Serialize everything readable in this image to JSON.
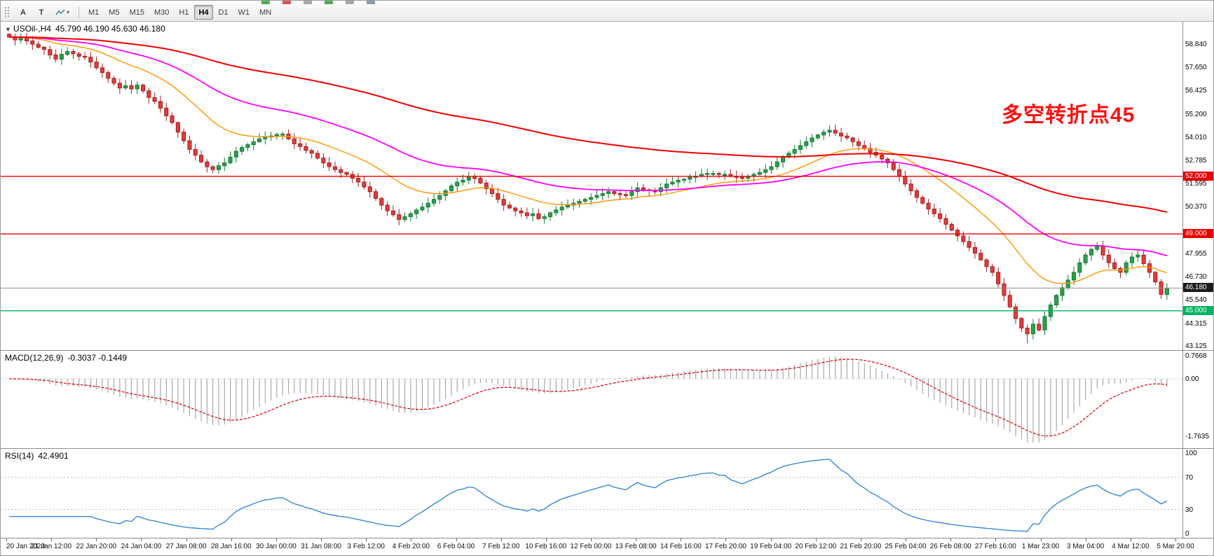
{
  "toolbar": {
    "drag_handle_icon": "drag-handle-icon",
    "tools": [
      {
        "name": "text-tool",
        "label": "A"
      },
      {
        "name": "text-label-tool",
        "label": "T"
      },
      {
        "name": "drawing-objects-tool",
        "icon": "trendline-tool-icon",
        "caret": "▾"
      }
    ],
    "timeframes": [
      {
        "label": "M1"
      },
      {
        "label": "M5"
      },
      {
        "label": "M15"
      },
      {
        "label": "M30"
      },
      {
        "label": "H1"
      },
      {
        "label": "H4",
        "active": true
      },
      {
        "label": "D1"
      },
      {
        "label": "W1"
      },
      {
        "label": "MN"
      }
    ],
    "cropped_icon_colors": [
      "#3a9a3a",
      "#cc3a3a",
      "#9a9a9a",
      "#3a9a3a",
      "#9a9a9a",
      "#7a8a9a"
    ]
  },
  "chart": {
    "dropdown_glyph": "▼",
    "symbol_label": "USOil-,H4",
    "ohlc_label": "45.790 46.190 45.630 46.180",
    "annotation": {
      "text": "多空转折点45",
      "color": "#ff0f0f"
    },
    "price_range": {
      "min": 42.95,
      "max": 60.05
    },
    "price_scale_labels": [
      {
        "text": "58.840",
        "price": 58.84
      },
      {
        "text": "57.650",
        "price": 57.65
      },
      {
        "text": "56.425",
        "price": 56.425
      },
      {
        "text": "55.200",
        "price": 55.2
      },
      {
        "text": "54.010",
        "price": 54.01
      },
      {
        "text": "52.785",
        "price": 52.785
      },
      {
        "text": "51.595",
        "price": 51.595
      },
      {
        "text": "50.370",
        "price": 50.37
      },
      {
        "text": "47.955",
        "price": 47.955
      },
      {
        "text": "46.730",
        "price": 46.73
      },
      {
        "text": "45.540",
        "price": 45.54
      },
      {
        "text": "44.315",
        "price": 44.315
      },
      {
        "text": "43.125",
        "price": 43.125
      }
    ],
    "levels": [
      {
        "label": "52.000",
        "price": 52.0,
        "color": "#e60000"
      },
      {
        "label": "49.000",
        "price": 49.0,
        "color": "#e60000"
      },
      {
        "label": "45.000",
        "price": 45.0,
        "color": "#00b45f"
      }
    ],
    "price_marker": {
      "label": "46.180",
      "price": 46.18,
      "color": "#1c1c1c"
    }
  },
  "colors": {
    "bull": "#2ba04c",
    "bull_border": "#157a33",
    "bear": "#e23b3b",
    "bear_border": "#a61f1f"
  },
  "chart_data": {
    "type": "candlestick",
    "symbol": "USOil",
    "timeframe": "H4",
    "ohlc_current": {
      "open": 45.79,
      "high": 46.19,
      "low": 45.63,
      "close": 46.18
    },
    "first_open": 59.4,
    "closes": [
      59.25,
      59.1,
      59.18,
      59.05,
      58.88,
      58.72,
      58.6,
      58.32,
      58.1,
      58.35,
      58.5,
      58.38,
      58.25,
      58.2,
      57.95,
      57.65,
      57.4,
      57.1,
      56.85,
      56.6,
      56.72,
      56.55,
      56.75,
      56.45,
      56.1,
      55.9,
      55.55,
      55.15,
      54.8,
      54.3,
      53.85,
      53.4,
      53.1,
      52.75,
      52.5,
      52.35,
      52.55,
      52.7,
      53.0,
      53.3,
      53.5,
      53.65,
      53.8,
      53.95,
      54.05,
      54.1,
      54.18,
      54.2,
      53.95,
      53.7,
      53.55,
      53.35,
      53.2,
      52.95,
      52.7,
      52.5,
      52.35,
      52.2,
      52.1,
      51.9,
      51.7,
      51.45,
      51.2,
      50.85,
      50.5,
      50.2,
      50.0,
      49.75,
      49.9,
      50.05,
      50.25,
      50.4,
      50.6,
      50.8,
      51.0,
      51.25,
      51.5,
      51.7,
      51.8,
      51.95,
      51.9,
      51.65,
      51.35,
      51.1,
      50.8,
      50.5,
      50.35,
      50.2,
      50.1,
      49.95,
      50.05,
      49.8,
      49.9,
      50.1,
      50.25,
      50.4,
      50.5,
      50.6,
      50.7,
      50.8,
      50.9,
      51.0,
      51.1,
      51.2,
      51.1,
      51.05,
      51.0,
      51.2,
      51.4,
      51.3,
      51.25,
      51.2,
      51.4,
      51.6,
      51.7,
      51.8,
      51.85,
      51.95,
      52.0,
      52.1,
      52.15,
      52.15,
      52.1,
      52.1,
      52.0,
      51.95,
      51.9,
      52.0,
      52.1,
      52.2,
      52.35,
      52.5,
      52.75,
      53.0,
      53.2,
      53.4,
      53.6,
      53.8,
      54.0,
      54.15,
      54.3,
      54.4,
      54.25,
      54.1,
      54.0,
      53.8,
      53.6,
      53.45,
      53.25,
      53.1,
      52.9,
      52.7,
      52.35,
      52.0,
      51.6,
      51.25,
      50.9,
      50.6,
      50.3,
      50.05,
      49.8,
      49.5,
      49.2,
      48.9,
      48.6,
      48.3,
      48.0,
      47.65,
      47.3,
      47.0,
      46.4,
      45.8,
      45.2,
      44.6,
      44.1,
      43.8,
      44.3,
      44.0,
      44.7,
      45.3,
      45.8,
      46.2,
      46.6,
      47.0,
      47.5,
      47.9,
      48.2,
      48.35,
      47.9,
      47.5,
      47.2,
      47.0,
      47.5,
      47.8,
      47.9,
      47.45,
      47.0,
      46.5,
      45.85,
      46.18
    ],
    "wick_overrides": {
      "175": {
        "low": 43.3
      }
    },
    "moving_averages": [
      {
        "name": "fast-ma",
        "period": 20,
        "color": "#ff9500"
      },
      {
        "name": "mid-ma",
        "period": 48,
        "color": "#ff00ff"
      },
      {
        "name": "slow-ma",
        "period": 130,
        "color": "#f20000"
      }
    ],
    "time_labels": [
      "20 Jan 2020",
      "21 Jan 12:00",
      "22 Jan 20:00",
      "24 Jan 04:00",
      "27 Jan 08:00",
      "28 Jan 16:00",
      "30 Jan 00:00",
      "31 Jan 08:00",
      "3 Feb 12:00",
      "4 Feb 20:00",
      "6 Feb 04:00",
      "7 Feb 12:00",
      "10 Feb 16:00",
      "12 Feb 00:00",
      "13 Feb 08:00",
      "14 Feb 16:00",
      "17 Feb 20:00",
      "19 Feb 04:00",
      "20 Feb 12:00",
      "21 Feb 20:00",
      "25 Feb 04:00",
      "26 Feb 08:00",
      "27 Feb 16:00",
      "1 Mar 23:00",
      "3 Mar 04:00",
      "4 Mar 12:00",
      "5 Mar 20:00"
    ]
  },
  "indicators": {
    "macd": {
      "label": "MACD(12,26,9)",
      "values_display": "-0.3037 -0.1449",
      "fast": 12,
      "slow": 26,
      "signal": 9,
      "histogram_color": "#a8a8a8",
      "signal_color": "#d40000",
      "scale_labels": [
        {
          "text": "0.7668",
          "value": 0.7668
        },
        {
          "text": "0.00",
          "value": 0
        },
        {
          "text": "-1.7635",
          "value": -1.7635
        }
      ]
    },
    "rsi": {
      "label": "RSI(14)",
      "value_display": "42.4901",
      "period": 14,
      "line_color": "#2a7fd4",
      "levels": [
        70,
        30
      ],
      "scale_labels": [
        {
          "text": "100",
          "value": 100
        },
        {
          "text": "70",
          "value": 70
        },
        {
          "text": "30",
          "value": 30
        },
        {
          "text": "0",
          "value": 0
        }
      ]
    }
  }
}
